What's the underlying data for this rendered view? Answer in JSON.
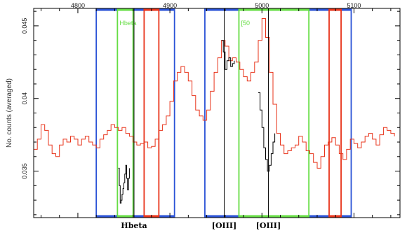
{
  "chart_data": {
    "type": "line",
    "title": "",
    "xlabel": "",
    "ylabel": "No. counts (averaged)",
    "xlim": [
      4752,
      5150
    ],
    "ylim": [
      0.0318,
      0.0462
    ],
    "x_ticks": [
      4800,
      4900,
      5000,
      5100
    ],
    "x_tick_labels": [
      "4800",
      "4900",
      "5000",
      "5100"
    ],
    "y_ticks": [
      0.035,
      0.04,
      0.045
    ],
    "y_tick_labels": [
      "0.035",
      "0.04",
      "0.045"
    ],
    "grid": false,
    "series": [
      {
        "role": "spectrum",
        "color": "#e8331a",
        "x": [
          4752,
          4756,
          4760,
          4764,
          4768,
          4772,
          4776,
          4780,
          4784,
          4788,
          4792,
          4796,
          4800,
          4804,
          4808,
          4812,
          4816,
          4820,
          4824,
          4828,
          4832,
          4836,
          4840,
          4844,
          4848,
          4852,
          4856,
          4860,
          4864,
          4868,
          4872,
          4876,
          4880,
          4884,
          4888,
          4892,
          4896,
          4900,
          4904,
          4908,
          4912,
          4916,
          4920,
          4924,
          4928,
          4932,
          4936,
          4940,
          4944,
          4948,
          4952,
          4956,
          4960,
          4964,
          4968,
          4972,
          4976,
          4980,
          4984,
          4988,
          4992,
          4996,
          5000,
          5004,
          5008,
          5012,
          5016,
          5020,
          5024,
          5028,
          5032,
          5036,
          5040,
          5044,
          5048,
          5052,
          5056,
          5060,
          5064,
          5068,
          5072,
          5076,
          5080,
          5084,
          5088,
          5092,
          5096,
          5100,
          5104,
          5108,
          5112,
          5116,
          5120,
          5124,
          5128,
          5132,
          5136,
          5140,
          5144
        ],
        "y": [
          0.0365,
          0.0372,
          0.0382,
          0.0378,
          0.0368,
          0.0362,
          0.036,
          0.0368,
          0.0372,
          0.037,
          0.0374,
          0.0372,
          0.0368,
          0.0372,
          0.0374,
          0.037,
          0.0368,
          0.0366,
          0.0372,
          0.0375,
          0.0378,
          0.0382,
          0.038,
          0.0378,
          0.038,
          0.0376,
          0.0374,
          0.037,
          0.0368,
          0.0369,
          0.037,
          0.0366,
          0.0367,
          0.0372,
          0.0378,
          0.0382,
          0.0388,
          0.0398,
          0.0412,
          0.0418,
          0.0422,
          0.0418,
          0.0412,
          0.0402,
          0.0392,
          0.0388,
          0.0385,
          0.0392,
          0.0405,
          0.0418,
          0.0428,
          0.044,
          0.0436,
          0.0426,
          0.0428,
          0.0425,
          0.042,
          0.0415,
          0.0412,
          0.0418,
          0.0425,
          0.044,
          0.0455,
          0.0442,
          0.0418,
          0.0396,
          0.0376,
          0.0368,
          0.0362,
          0.0364,
          0.0366,
          0.0368,
          0.0374,
          0.037,
          0.0364,
          0.0362,
          0.0356,
          0.0352,
          0.036,
          0.0368,
          0.037,
          0.0373,
          0.0368,
          0.0362,
          0.0358,
          0.0365,
          0.0372,
          0.0369,
          0.0366,
          0.037,
          0.0374,
          0.0376,
          0.0372,
          0.0368,
          0.0375,
          0.038,
          0.0378,
          0.0376,
          0.0374
        ]
      },
      {
        "role": "residual-hbeta",
        "color": "#000000",
        "x": [
          4844,
          4845,
          4846,
          4847,
          4848,
          4849,
          4850,
          4851,
          4852,
          4853,
          4854,
          4855,
          4856
        ],
        "y": [
          0.0352,
          0.034,
          0.0328,
          0.033,
          0.0334,
          0.0338,
          0.0342,
          0.0348,
          0.0354,
          0.0345,
          0.0337,
          0.0345,
          0.0352
        ]
      },
      {
        "role": "residual-oiii-4959",
        "color": "#000000",
        "x": [
          4956,
          4958,
          4960,
          4962,
          4964,
          4966,
          4968,
          4970
        ],
        "y": [
          0.044,
          0.0432,
          0.042,
          0.0426,
          0.0428,
          0.0422,
          0.0424,
          0.0426
        ]
      },
      {
        "role": "residual-oiii-5007",
        "color": "#000000",
        "x": [
          4996,
          4998,
          5000,
          5002,
          5004,
          5006,
          5008,
          5010,
          5012,
          5014
        ],
        "y": [
          0.0404,
          0.0392,
          0.038,
          0.0366,
          0.0358,
          0.035,
          0.0354,
          0.0362,
          0.037,
          0.0376
        ]
      }
    ],
    "bands": [
      {
        "x0": 4820,
        "x1": 4905,
        "color": "#2a52d6"
      },
      {
        "x0": 4843,
        "x1": 4860,
        "color": "#66dd44",
        "label": "Hbeta"
      },
      {
        "x0": 4872,
        "x1": 4888,
        "color": "#e8331a"
      },
      {
        "x0": 4938,
        "x1": 5097,
        "color": "#2a52d6"
      },
      {
        "x0": 4975,
        "x1": 5051,
        "color": "#66dd44",
        "label": "[50"
      },
      {
        "x0": 5073,
        "x1": 5086,
        "color": "#e8331a"
      }
    ],
    "line_markers": [
      {
        "x": 4861,
        "label": "Hbeta"
      },
      {
        "x": 4959,
        "label": "[OIII]"
      },
      {
        "x": 5007,
        "label": "[OIII]"
      }
    ]
  }
}
